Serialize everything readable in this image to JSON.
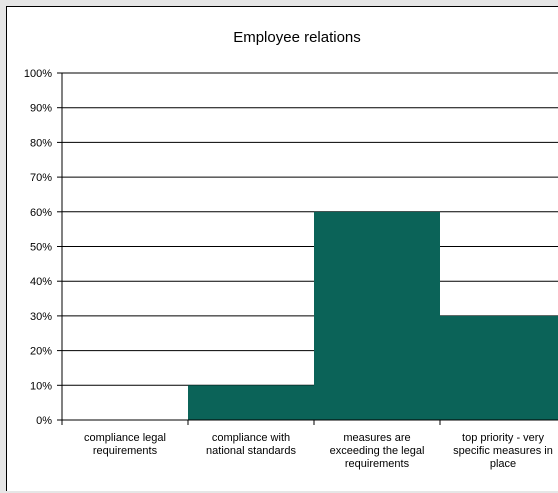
{
  "chart_data": {
    "type": "bar",
    "title": "Employee relations",
    "categories": [
      [
        "compliance legal",
        "requirements"
      ],
      [
        "compliance with",
        "national standards"
      ],
      [
        "measures are",
        "exceeding the legal",
        "requirements"
      ],
      [
        "top priority - very",
        "specific measures in",
        "place"
      ]
    ],
    "values": [
      0.0,
      0.1,
      0.6,
      0.3
    ],
    "ylim": [
      0,
      1
    ],
    "yticks": [
      "0%",
      "10%",
      "20%",
      "30%",
      "40%",
      "50%",
      "60%",
      "70%",
      "80%",
      "90%",
      "100%"
    ],
    "grid": true,
    "legend": false,
    "bar_color": "#0b6358"
  }
}
